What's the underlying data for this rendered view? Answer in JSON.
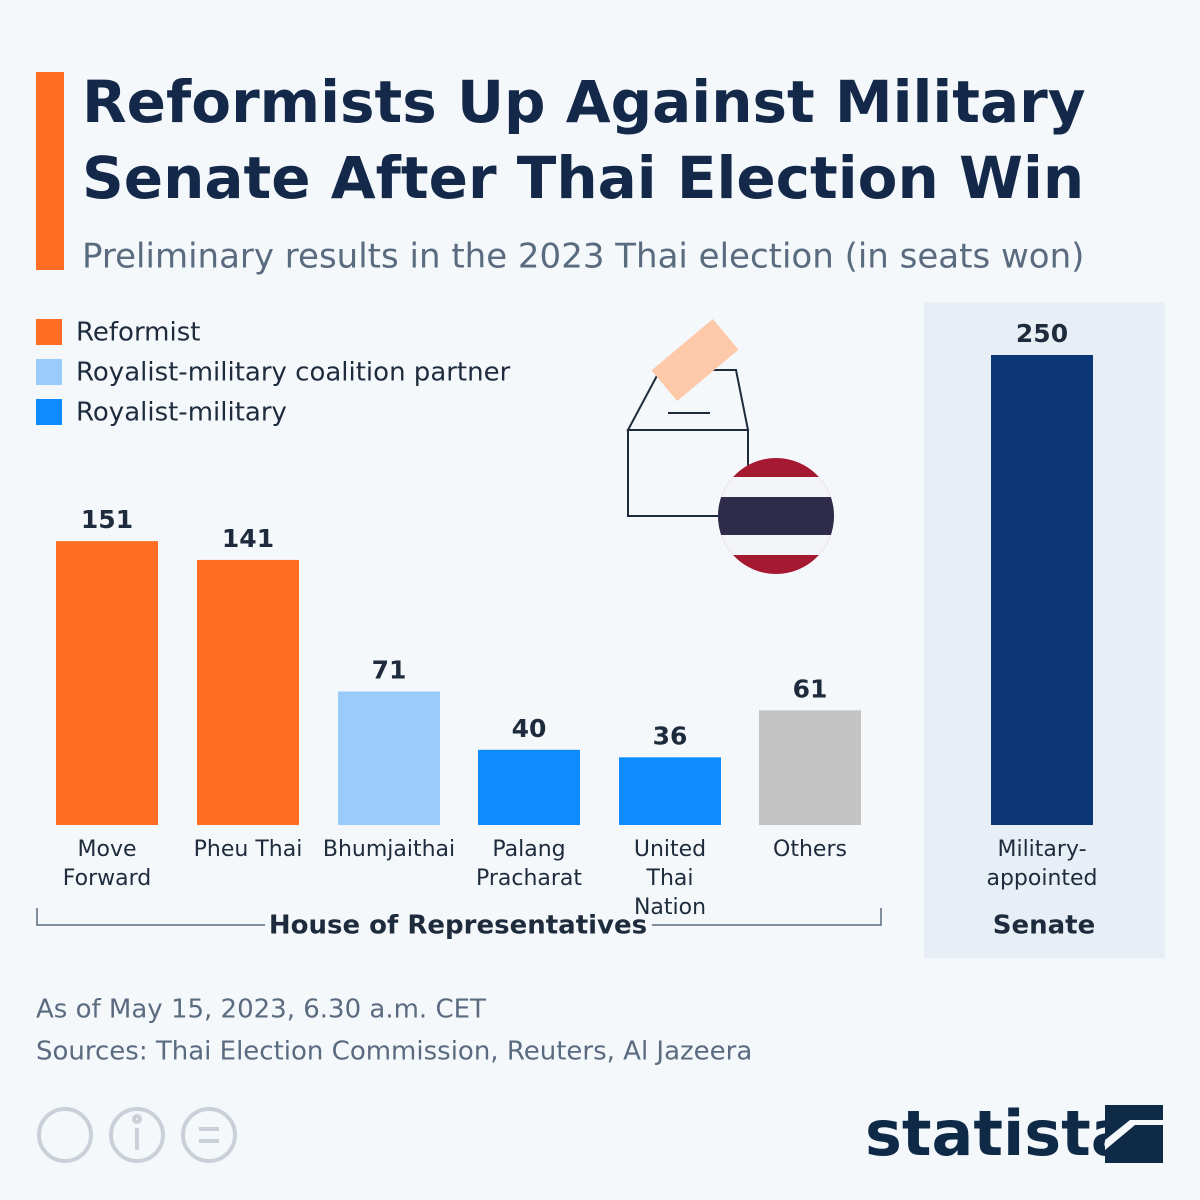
{
  "chart_data": {
    "type": "bar",
    "title": "Reformists Up Against Military Senate After Thai Election Win",
    "subtitle": "Preliminary results in the 2023 Thai election (in seats won)",
    "legend": [
      {
        "name": "Reformist",
        "color": "#ff6d24"
      },
      {
        "name": "Royalist-military coalition partner",
        "color": "#99ccf8"
      },
      {
        "name": "Royalist-military",
        "color": "#0d8bff"
      }
    ],
    "panels": [
      {
        "label": "House of Representatives",
        "categories": [
          "Move Forward",
          "Pheu Thai",
          "Bhumjaithai",
          "Palang Pracharat",
          "United Thai Nation",
          "Others"
        ],
        "values": [
          151,
          141,
          71,
          40,
          36,
          61
        ],
        "colors": [
          "#ff6d24",
          "#ff6d24",
          "#99ccf8",
          "#0d8bff",
          "#0d8bff",
          "#c3c3c3"
        ]
      },
      {
        "label": "Senate",
        "categories": [
          "Military-appointed"
        ],
        "values": [
          250
        ],
        "colors": [
          "#0b3678"
        ]
      }
    ],
    "note": "As of May 15, 2023, 6.30 a.m. CET",
    "source": "Sources: Thai Election Commission, Reuters, Al Jazeera",
    "brand": "statista"
  }
}
